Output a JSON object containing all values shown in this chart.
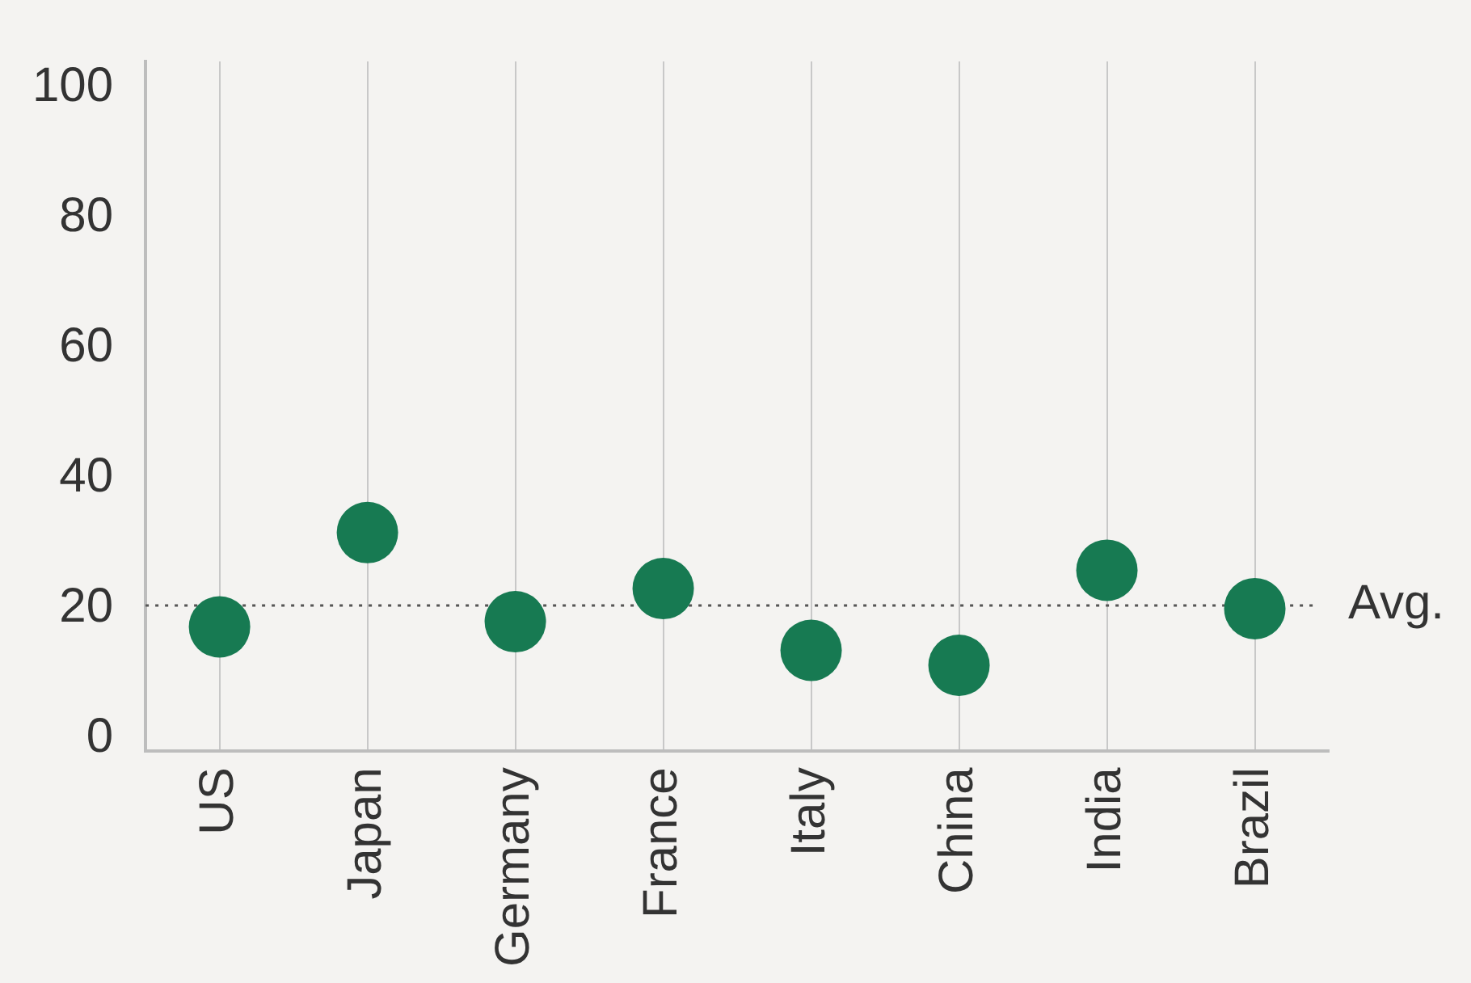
{
  "chart_data": {
    "type": "scatter",
    "categories": [
      "US",
      "Japan",
      "Germany",
      "France",
      "Italy",
      "China",
      "India",
      "Brazil"
    ],
    "series": [
      {
        "color": "#177a52",
        "values": [
          17.1,
          31.6,
          17.9,
          23,
          13.5,
          11.2,
          25.8,
          19.9
        ]
      }
    ],
    "ylim": [
      -2,
      104
    ],
    "yticks": [
      0,
      20,
      40,
      60,
      80,
      100
    ],
    "grid": "x",
    "legend": false,
    "marker": "circle",
    "ref_lines": [
      {
        "axis": "y",
        "value": 20.4,
        "label": "Avg.",
        "color": "#555555",
        "line_style": "dotted"
      }
    ]
  }
}
